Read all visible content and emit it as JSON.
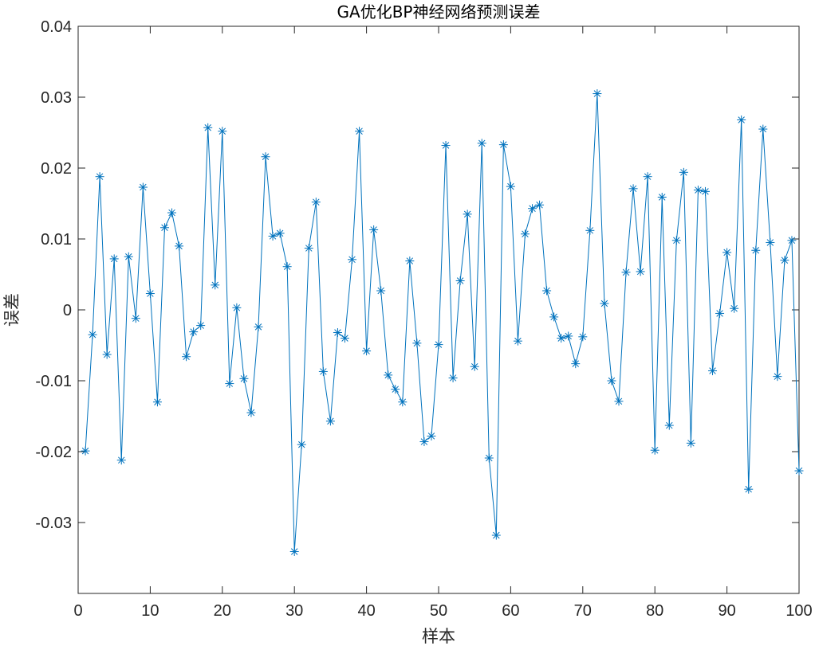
{
  "chart_data": {
    "type": "line",
    "title": "GA优化BP神经网络预测误差",
    "xlabel": "样本",
    "ylabel": "误差",
    "xlim": [
      0,
      100
    ],
    "ylim": [
      -0.04,
      0.04
    ],
    "xticks": [
      0,
      10,
      20,
      30,
      40,
      50,
      60,
      70,
      80,
      90,
      100
    ],
    "xtick_labels": [
      "0",
      "10",
      "20",
      "30",
      "40",
      "50",
      "60",
      "70",
      "80",
      "90",
      "100"
    ],
    "yticks": [
      -0.03,
      -0.02,
      -0.01,
      0,
      0.01,
      0.02,
      0.03,
      0.04
    ],
    "ytick_labels": [
      "-0.03",
      "-0.02",
      "-0.01",
      "0",
      "0.01",
      "0.02",
      "0.03",
      "0.04"
    ],
    "grid": false,
    "marker": "asterisk",
    "color": "#0072BD",
    "series": [
      {
        "x": [
          1,
          2,
          3,
          4,
          5,
          6,
          7,
          8,
          9,
          10,
          11,
          12,
          13,
          14,
          15,
          16,
          17,
          18,
          19,
          20,
          21,
          22,
          23,
          24,
          25,
          26,
          27,
          28,
          29,
          30,
          31,
          32,
          33,
          34,
          35,
          36,
          37,
          38,
          39,
          40,
          41,
          42,
          43,
          44,
          45,
          46,
          47,
          48,
          49,
          50,
          51,
          52,
          53,
          54,
          55,
          56,
          57,
          58,
          59,
          60,
          61,
          62,
          63,
          64,
          65,
          66,
          67,
          68,
          69,
          70,
          71,
          72,
          73,
          74,
          75,
          76,
          77,
          78,
          79,
          80,
          81,
          82,
          83,
          84,
          85,
          86,
          87,
          88,
          89,
          90,
          91,
          92,
          93,
          94,
          95,
          96,
          97,
          98,
          99,
          100
        ],
        "values": [
          -0.0199,
          -0.0035,
          0.0188,
          -0.0063,
          0.0072,
          -0.0212,
          0.0075,
          -0.0012,
          0.0173,
          0.0023,
          -0.013,
          0.0116,
          0.0137,
          0.009,
          -0.0066,
          -0.0031,
          -0.0022,
          0.0257,
          0.0035,
          0.0252,
          -0.0104,
          0.0003,
          -0.0097,
          -0.0145,
          -0.0024,
          0.0216,
          0.0104,
          0.0108,
          0.0061,
          -0.0341,
          -0.019,
          0.0087,
          0.0152,
          -0.0087,
          -0.0157,
          -0.0032,
          -0.004,
          0.0071,
          0.0252,
          -0.0058,
          0.0113,
          0.0027,
          -0.0092,
          -0.0112,
          -0.013,
          0.0069,
          -0.0047,
          -0.0186,
          -0.0178,
          -0.0049,
          0.0232,
          -0.0096,
          0.0041,
          0.0135,
          -0.008,
          0.0235,
          -0.0209,
          -0.0318,
          0.0233,
          0.0174,
          -0.0044,
          0.0107,
          0.0143,
          0.0148,
          0.0027,
          -0.001,
          -0.004,
          -0.0037,
          -0.0076,
          -0.0038,
          0.0112,
          0.0305,
          0.0009,
          -0.01,
          -0.0129,
          0.0053,
          0.0171,
          0.0054,
          0.0188,
          -0.0198,
          0.0159,
          -0.0163,
          0.0098,
          0.0194,
          -0.0188,
          0.0169,
          0.0167,
          -0.0086,
          -0.0005,
          0.0081,
          0.0002,
          0.0268,
          -0.0253,
          0.0084,
          0.0255,
          0.0095,
          -0.0094,
          0.007,
          0.0098,
          -0.0227
        ]
      }
    ]
  }
}
